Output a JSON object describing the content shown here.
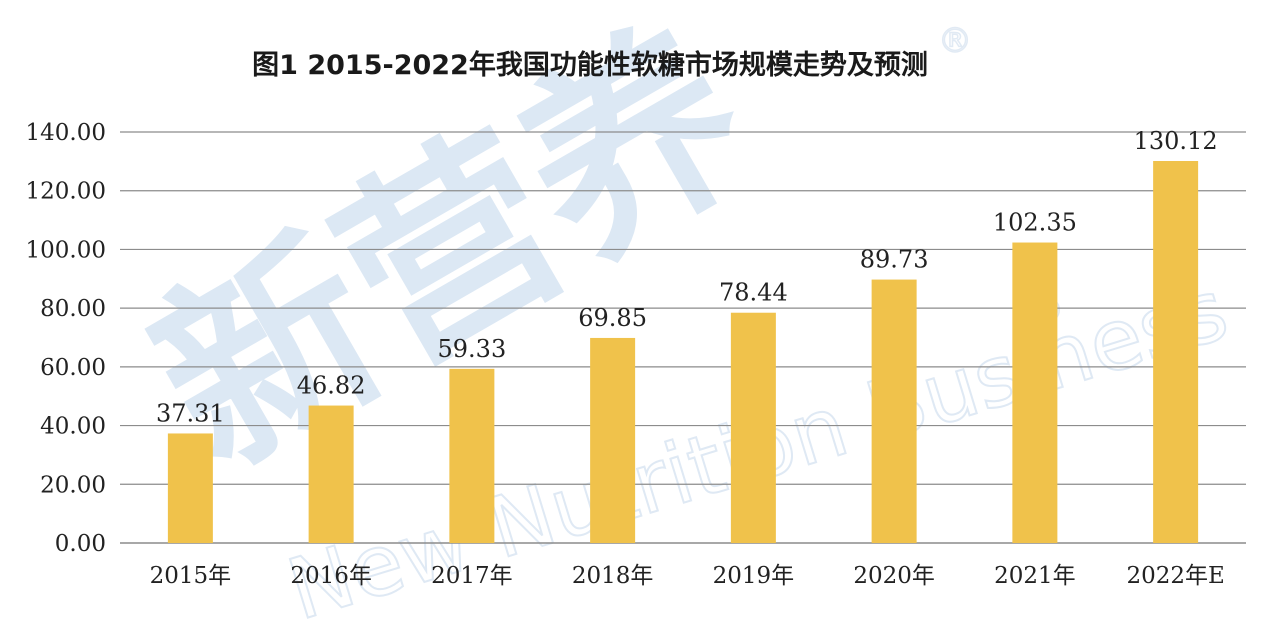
{
  "chart_data": {
    "type": "bar",
    "title": "图1 2015-2022年我国功能性软糖市场规模走势及预测",
    "categories": [
      "2015年",
      "2016年",
      "2017年",
      "2018年",
      "2019年",
      "2020年",
      "2021年",
      "2022年E"
    ],
    "values": [
      37.31,
      46.82,
      59.33,
      69.85,
      78.44,
      89.73,
      102.35,
      130.12
    ],
    "value_labels": [
      "37.31",
      "46.82",
      "59.33",
      "69.85",
      "78.44",
      "89.73",
      "102.35",
      "130.12"
    ],
    "y_ticks": [
      "0.00",
      "20.00",
      "40.00",
      "60.00",
      "80.00",
      "100.00",
      "120.00",
      "140.00"
    ],
    "ylim": [
      0,
      140
    ],
    "xlabel": "",
    "ylabel": "",
    "grid": true,
    "legend": "none",
    "bar_color": "#f0c24b",
    "grid_color": "#8c8c8c"
  },
  "watermark": {
    "chinese": "新营养",
    "english": "New Nutrition Business",
    "registered": "®",
    "color": "#dce8f4"
  }
}
